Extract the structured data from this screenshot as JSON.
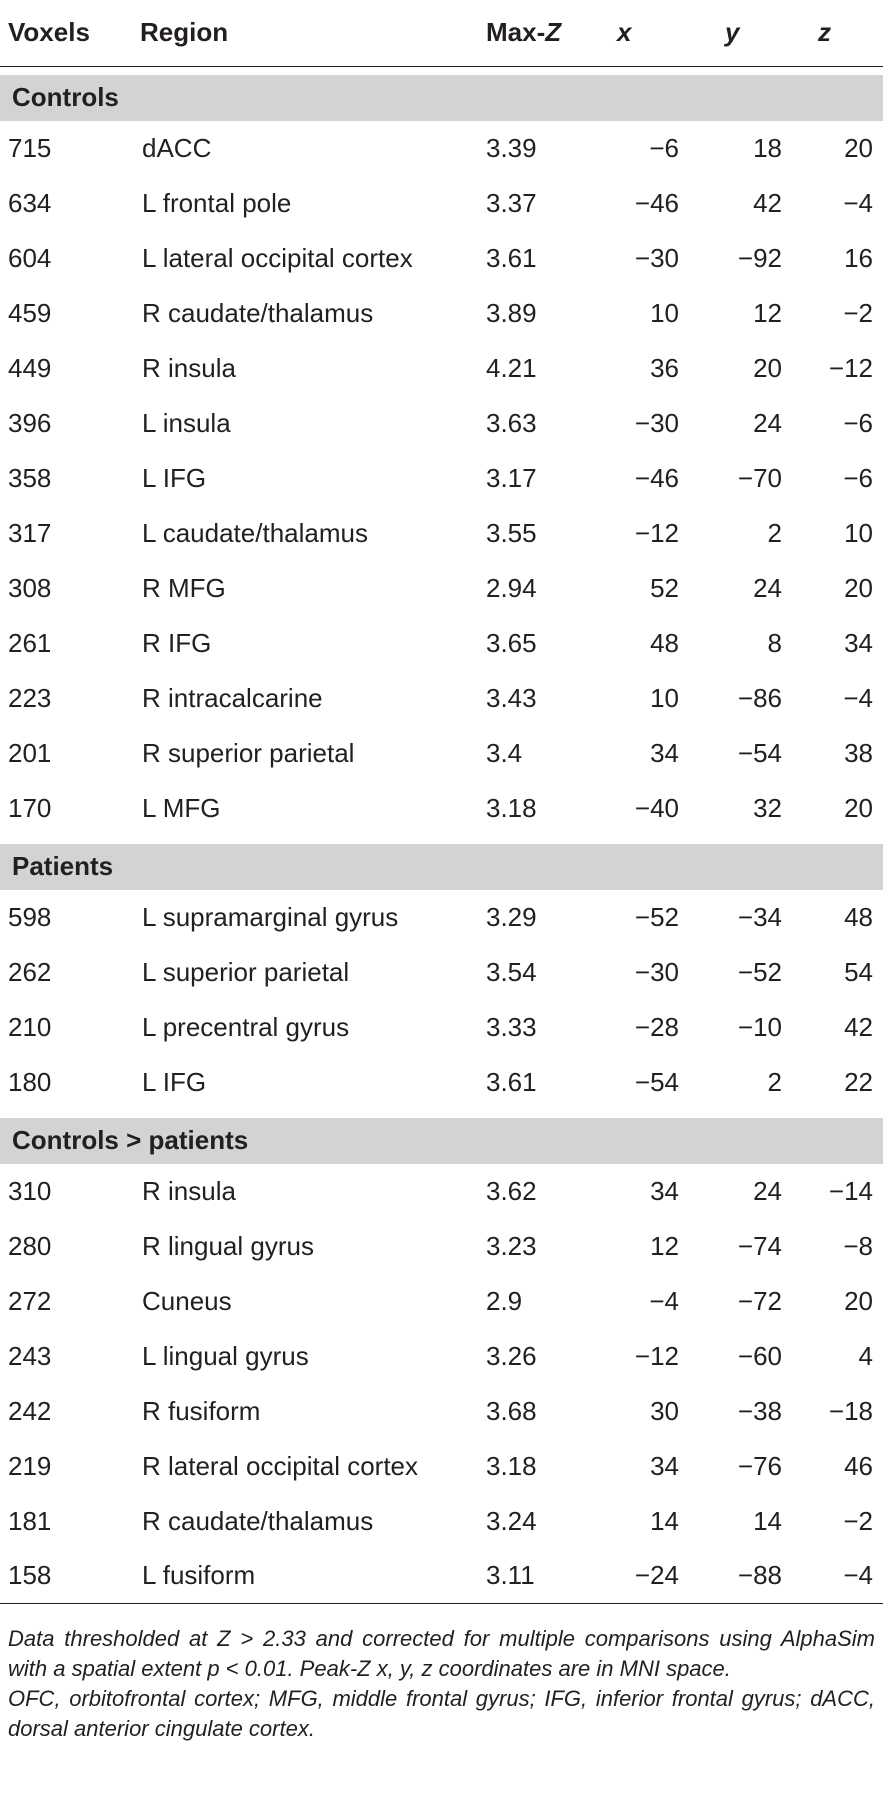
{
  "headers": {
    "voxels": "Voxels",
    "region": "Region",
    "maxz_prefix": "Max-",
    "maxz_var": "Z",
    "x": "x",
    "y": "y",
    "z": "z"
  },
  "groups": [
    {
      "name": "Controls",
      "rows": [
        {
          "voxels": "715",
          "region": "dACC",
          "maxz": "3.39",
          "x": "−6",
          "y": "18",
          "z": "20"
        },
        {
          "voxels": "634",
          "region": "L frontal pole",
          "maxz": "3.37",
          "x": "−46",
          "y": "42",
          "z": "−4"
        },
        {
          "voxels": "604",
          "region": "L lateral occipital cortex",
          "maxz": "3.61",
          "x": "−30",
          "y": "−92",
          "z": "16"
        },
        {
          "voxels": "459",
          "region": "R caudate/thalamus",
          "maxz": "3.89",
          "x": "10",
          "y": "12",
          "z": "−2"
        },
        {
          "voxels": "449",
          "region": "R insula",
          "maxz": "4.21",
          "x": "36",
          "y": "20",
          "z": "−12"
        },
        {
          "voxels": "396",
          "region": "L insula",
          "maxz": "3.63",
          "x": "−30",
          "y": "24",
          "z": "−6"
        },
        {
          "voxels": "358",
          "region": "L IFG",
          "maxz": "3.17",
          "x": "−46",
          "y": "−70",
          "z": "−6"
        },
        {
          "voxels": "317",
          "region": "L caudate/thalamus",
          "maxz": "3.55",
          "x": "−12",
          "y": "2",
          "z": "10"
        },
        {
          "voxels": "308",
          "region": "R MFG",
          "maxz": "2.94",
          "x": "52",
          "y": "24",
          "z": "20"
        },
        {
          "voxels": "261",
          "region": "R IFG",
          "maxz": "3.65",
          "x": "48",
          "y": "8",
          "z": "34"
        },
        {
          "voxels": "223",
          "region": "R intracalcarine",
          "maxz": "3.43",
          "x": "10",
          "y": "−86",
          "z": "−4"
        },
        {
          "voxels": "201",
          "region": "R superior parietal",
          "maxz": "3.4",
          "x": "34",
          "y": "−54",
          "z": "38"
        },
        {
          "voxels": "170",
          "region": "L MFG",
          "maxz": "3.18",
          "x": "−40",
          "y": "32",
          "z": "20"
        }
      ]
    },
    {
      "name": "Patients",
      "rows": [
        {
          "voxels": "598",
          "region": "L supramarginal gyrus",
          "maxz": "3.29",
          "x": "−52",
          "y": "−34",
          "z": "48"
        },
        {
          "voxels": "262",
          "region": "L superior parietal",
          "maxz": "3.54",
          "x": "−30",
          "y": "−52",
          "z": "54"
        },
        {
          "voxels": "210",
          "region": "L precentral gyrus",
          "maxz": "3.33",
          "x": "−28",
          "y": "−10",
          "z": "42"
        },
        {
          "voxels": "180",
          "region": "L IFG",
          "maxz": "3.61",
          "x": "−54",
          "y": "2",
          "z": "22"
        }
      ]
    },
    {
      "name": "Controls > patients",
      "rows": [
        {
          "voxels": "310",
          "region": "R insula",
          "maxz": "3.62",
          "x": "34",
          "y": "24",
          "z": "−14"
        },
        {
          "voxels": "280",
          "region": "R lingual gyrus",
          "maxz": "3.23",
          "x": "12",
          "y": "−74",
          "z": "−8"
        },
        {
          "voxels": "272",
          "region": "Cuneus",
          "maxz": "2.9",
          "x": "−4",
          "y": "−72",
          "z": "20"
        },
        {
          "voxels": "243",
          "region": "L lingual gyrus",
          "maxz": "3.26",
          "x": "−12",
          "y": "−60",
          "z": "4"
        },
        {
          "voxels": "242",
          "region": "R fusiform",
          "maxz": "3.68",
          "x": "30",
          "y": "−38",
          "z": "−18"
        },
        {
          "voxels": "219",
          "region": "R lateral occipital cortex",
          "maxz": "3.18",
          "x": "34",
          "y": "−76",
          "z": "46"
        },
        {
          "voxels": "181",
          "region": "R caudate/thalamus",
          "maxz": "3.24",
          "x": "14",
          "y": "14",
          "z": "−2"
        },
        {
          "voxels": "158",
          "region": "L fusiform",
          "maxz": "3.11",
          "x": "−24",
          "y": "−88",
          "z": "−4"
        }
      ]
    }
  ],
  "notes": {
    "threshold": "Data thresholded at Z > 2.33 and corrected for multiple comparisons using AlphaSim with a spatial extent p < 0.01. Peak-Z x, y, z coordinates are in MNI space.",
    "abbreviations": "OFC, orbitofrontal cortex; MFG, middle frontal gyrus; IFG, inferior frontal gyrus; dACC, dorsal anterior cingulate cortex."
  },
  "colors": {
    "group_band": "#d1d3d4",
    "text": "#231f20"
  }
}
